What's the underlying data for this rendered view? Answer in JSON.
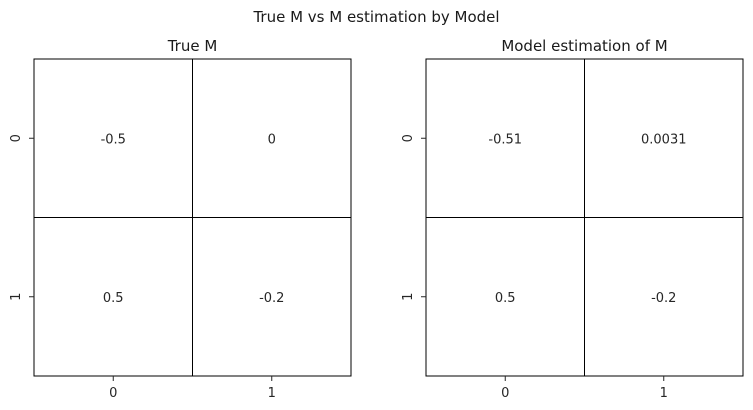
{
  "title": "True M vs M estimation by Model",
  "chart_data": [
    {
      "type": "heatmap",
      "title": "True M",
      "x_categories": [
        "0",
        "1"
      ],
      "y_categories": [
        "0",
        "1"
      ],
      "cells": [
        [
          "-0.5",
          "0"
        ],
        [
          "0.5",
          "-0.2"
        ]
      ],
      "values": [
        [
          -0.5,
          0
        ],
        [
          0.5,
          -0.2
        ]
      ],
      "cell_color": "#ffffff",
      "grid_color": "#000000"
    },
    {
      "type": "heatmap",
      "title": "Model estimation of M",
      "x_categories": [
        "0",
        "1"
      ],
      "y_categories": [
        "0",
        "1"
      ],
      "cells": [
        [
          "-0.51",
          "0.0031"
        ],
        [
          "0.5",
          "-0.2"
        ]
      ],
      "values": [
        [
          -0.51,
          0.0031
        ],
        [
          0.5,
          -0.2
        ]
      ],
      "cell_color": "#ffffff",
      "grid_color": "#000000"
    }
  ]
}
